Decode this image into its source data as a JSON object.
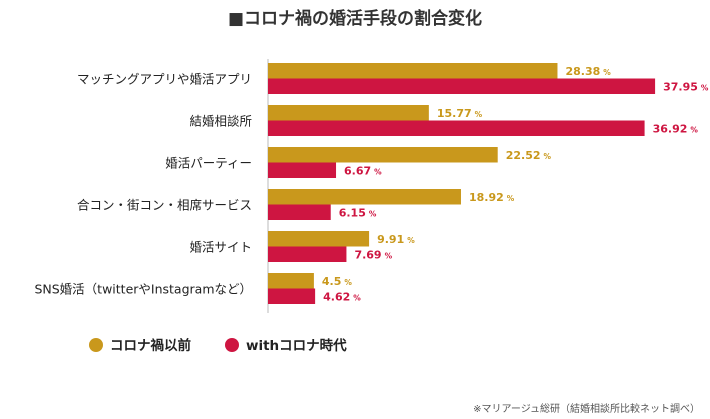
{
  "chart_data": {
    "type": "bar",
    "orientation": "horizontal",
    "title": "■コロナ禍の婚活手段の割合変化",
    "categories": [
      "マッチングアプリや婚活アプリ",
      "結婚相談所",
      "婚活パーティー",
      "合コン・街コン・相席サービス",
      "婚活サイト",
      "SNS婚活（twitterやInstagramなど）"
    ],
    "series": [
      {
        "name": "コロナ禍以前",
        "values": [
          28.38,
          15.77,
          22.52,
          18.92,
          9.91,
          4.5
        ],
        "labels": [
          "28.38",
          "15.77",
          "22.52",
          "18.92",
          "9.91",
          "4.5"
        ],
        "color": "#C9981C"
      },
      {
        "name": "withコロナ時代",
        "values": [
          37.95,
          36.92,
          6.67,
          6.15,
          7.69,
          4.62
        ],
        "labels": [
          "37.95",
          "36.92",
          "6.67",
          "6.15",
          "7.69",
          "4.62"
        ],
        "color": "#CE1541"
      }
    ],
    "unit": "%",
    "xlim": [
      0,
      40
    ],
    "grid": false,
    "legend": "bottom-left",
    "source": "※マリアージュ総研（結婚相談所比較ネット調べ）"
  }
}
